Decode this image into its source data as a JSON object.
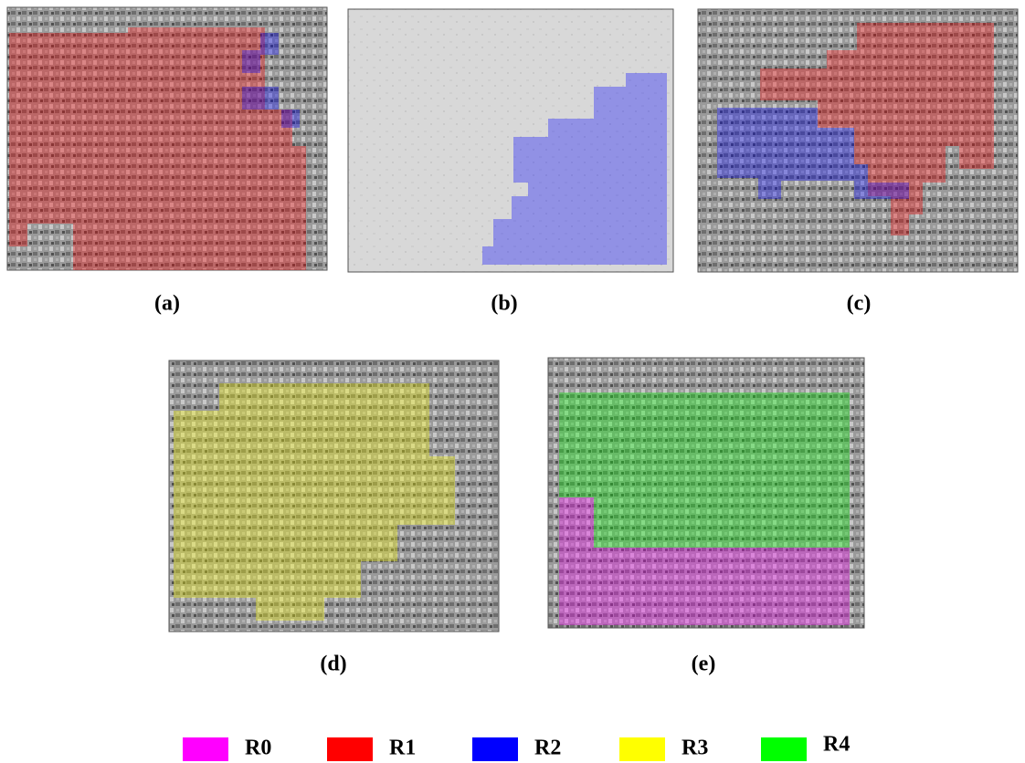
{
  "panels": [
    {
      "label": "(a)"
    },
    {
      "label": "(b)"
    },
    {
      "label": "(c)"
    },
    {
      "label": "(d)"
    },
    {
      "label": "(e)"
    }
  ],
  "legend": [
    {
      "label": "R0",
      "color": "#ff00ff"
    },
    {
      "label": "R1",
      "color": "#ff0000"
    },
    {
      "label": "R2",
      "color": "#0000ff"
    },
    {
      "label": "R3",
      "color": "#ffff00"
    },
    {
      "label": "R4",
      "color": "#00ff00"
    }
  ]
}
